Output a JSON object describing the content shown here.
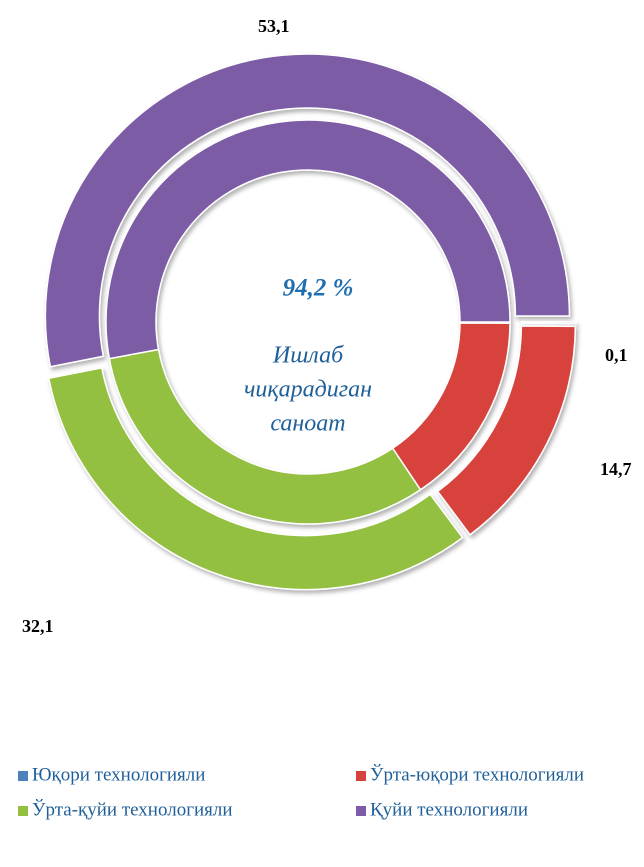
{
  "chart_data": {
    "type": "doughnut",
    "categories": [
      "Юқори технологияли",
      "Ўрта-юқори технологияли",
      "Ўрта-қуйи технологияли",
      "Қуйи технологияли"
    ],
    "colors": [
      "#4f81bd",
      "#d7423c",
      "#93c03f",
      "#7d5ba6"
    ],
    "series": [
      {
        "values": [
          0.1,
          14.7,
          32.1,
          53.1
        ],
        "value_labels": [
          "0,1",
          "14,7",
          "32,1",
          "53,1"
        ]
      },
      {
        "values": [
          0.1,
          15.5,
          31.5,
          52.9
        ]
      }
    ],
    "annotations": [
      {
        "text": "94,2 %"
      },
      {
        "lines": [
          "Ишлаб",
          "чиқарадиган",
          "саноат"
        ]
      }
    ],
    "legend": "bottom"
  }
}
